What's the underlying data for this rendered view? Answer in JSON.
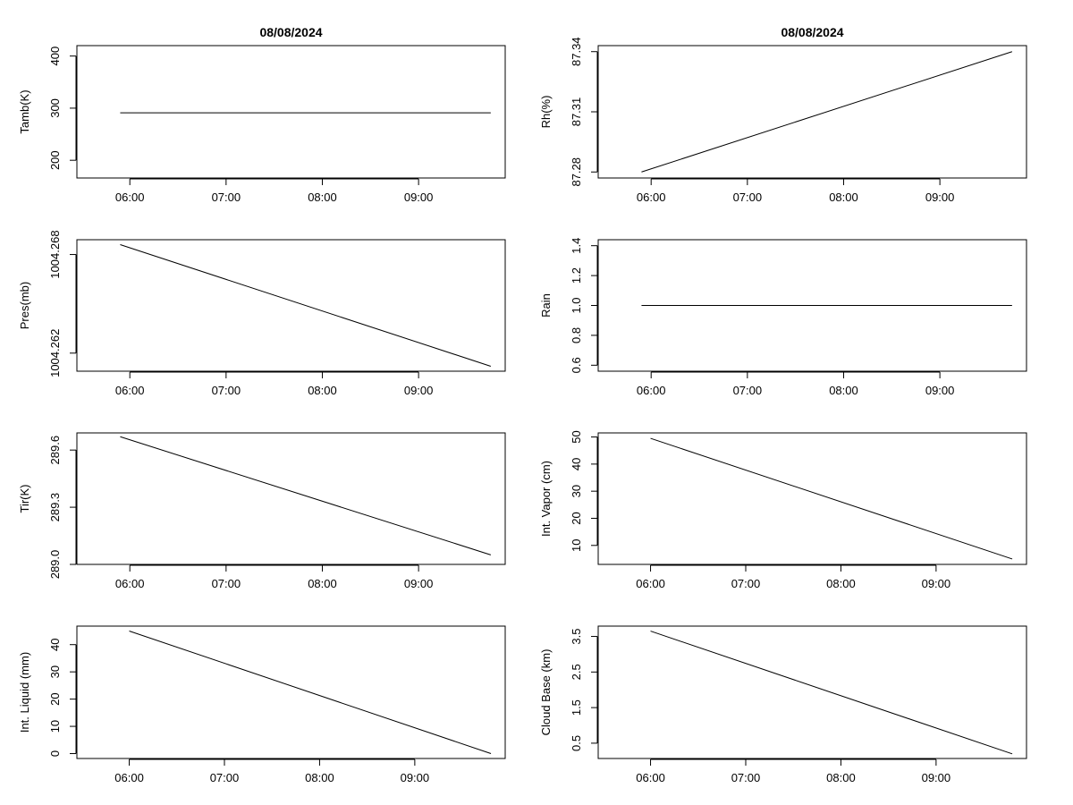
{
  "figure": {
    "titles": [
      "08/08/2024",
      "08/08/2024"
    ]
  },
  "chart_data": [
    {
      "type": "line",
      "title": "08/08/2024",
      "ylabel": "Tamb(K)",
      "xlabel": "",
      "xticks": [
        "06:00",
        "07:00",
        "08:00",
        "09:00"
      ],
      "xlim": [
        5.45,
        9.9
      ],
      "x": [
        5.9,
        9.75
      ],
      "y": [
        291,
        291
      ],
      "ylim": [
        166,
        420
      ],
      "yticks": [
        "200",
        "300",
        "400"
      ]
    },
    {
      "type": "line",
      "title": "08/08/2024",
      "ylabel": "Rh(%)",
      "xlabel": "",
      "xticks": [
        "06:00",
        "07:00",
        "08:00",
        "09:00"
      ],
      "xlim": [
        5.45,
        9.9
      ],
      "x": [
        5.9,
        9.75
      ],
      "y": [
        87.28,
        87.34
      ],
      "ylim": [
        87.277,
        87.343
      ],
      "yticks": [
        "87.28",
        "87.31",
        "87.34"
      ]
    },
    {
      "type": "line",
      "title": "",
      "ylabel": "Pres(mb)",
      "xlabel": "",
      "xticks": [
        "06:00",
        "07:00",
        "08:00",
        "09:00"
      ],
      "xlim": [
        5.45,
        9.9
      ],
      "x": [
        5.9,
        9.75
      ],
      "y": [
        1004.2686,
        1004.2612
      ],
      "ylim": [
        1004.2609,
        1004.2689
      ],
      "yticks": [
        "1004.262",
        "1004.268"
      ]
    },
    {
      "type": "line",
      "title": "",
      "ylabel": "Rain",
      "xlabel": "",
      "xticks": [
        "06:00",
        "07:00",
        "08:00",
        "09:00"
      ],
      "xlim": [
        5.45,
        9.9
      ],
      "x": [
        5.9,
        9.75
      ],
      "y": [
        1.0,
        1.0
      ],
      "ylim": [
        0.56,
        1.44
      ],
      "yticks": [
        "0.6",
        "0.8",
        "1.0",
        "1.2",
        "1.4"
      ]
    },
    {
      "type": "line",
      "title": "",
      "ylabel": "Tir(K)",
      "xlabel": "",
      "xticks": [
        "06:00",
        "07:00",
        "08:00",
        "09:00"
      ],
      "xlim": [
        5.45,
        9.9
      ],
      "x": [
        5.9,
        9.75
      ],
      "y": [
        289.67,
        289.05
      ],
      "ylim": [
        289.0,
        289.69
      ],
      "yticks": [
        "289.0",
        "289.3",
        "289.6"
      ]
    },
    {
      "type": "line",
      "title": "",
      "ylabel": "Int. Vapor (cm)",
      "xlabel": "",
      "xticks": [
        "06:00",
        "07:00",
        "08:00",
        "09:00"
      ],
      "xlim": [
        5.45,
        9.95
      ],
      "x": [
        6.0,
        9.8
      ],
      "y": [
        49.5,
        5.0
      ],
      "ylim": [
        3.0,
        51.5
      ],
      "yticks": [
        "10",
        "20",
        "30",
        "40",
        "50"
      ]
    },
    {
      "type": "line",
      "title": "",
      "ylabel": "Int. Liquid (mm)",
      "xlabel": "",
      "xticks": [
        "06:00",
        "07:00",
        "08:00",
        "09:00"
      ],
      "xlim": [
        5.45,
        9.95
      ],
      "x": [
        6.0,
        9.8
      ],
      "y": [
        45.0,
        0.0
      ],
      "ylim": [
        -1.8,
        46.8
      ],
      "yticks": [
        "0",
        "10",
        "20",
        "30",
        "40"
      ]
    },
    {
      "type": "line",
      "title": "",
      "ylabel": "Cloud Base (km)",
      "xlabel": "",
      "xticks": [
        "06:00",
        "07:00",
        "08:00",
        "09:00"
      ],
      "xlim": [
        5.45,
        9.95
      ],
      "x": [
        6.0,
        9.8
      ],
      "y": [
        3.65,
        0.2
      ],
      "ylim": [
        0.07,
        3.79
      ],
      "yticks": [
        "0.5",
        "1.5",
        "2.5",
        "3.5"
      ]
    }
  ]
}
